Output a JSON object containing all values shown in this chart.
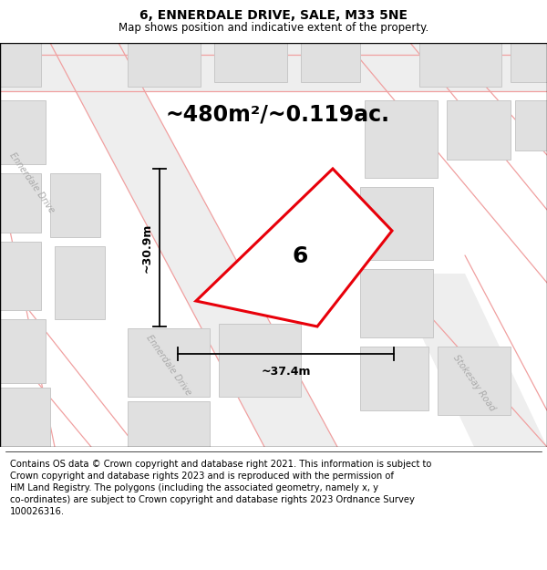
{
  "title": "6, ENNERDALE DRIVE, SALE, M33 5NE",
  "subtitle": "Map shows position and indicative extent of the property.",
  "footer": "Contains OS data © Crown copyright and database right 2021. This information is subject to\nCrown copyright and database rights 2023 and is reproduced with the permission of\nHM Land Registry. The polygons (including the associated geometry, namely x, y\nco-ordinates) are subject to Crown copyright and database rights 2023 Ordnance Survey\n100026316.",
  "area_label": "~480m²/~0.119ac.",
  "width_label": "~37.4m",
  "height_label": "~30.9m",
  "plot_number": "6",
  "map_bg": "#ffffff",
  "road_line_color": "#f0a0a0",
  "building_fill": "#e0e0e0",
  "building_edge": "#c8c8c8",
  "road_fill": "#eeeeee",
  "red_plot_color": "#e8000a",
  "title_fontsize": 10,
  "subtitle_fontsize": 8.5,
  "footer_fontsize": 7.2,
  "area_label_fontsize": 17,
  "plot_label_fontsize": 18,
  "dim_label_fontsize": 9
}
